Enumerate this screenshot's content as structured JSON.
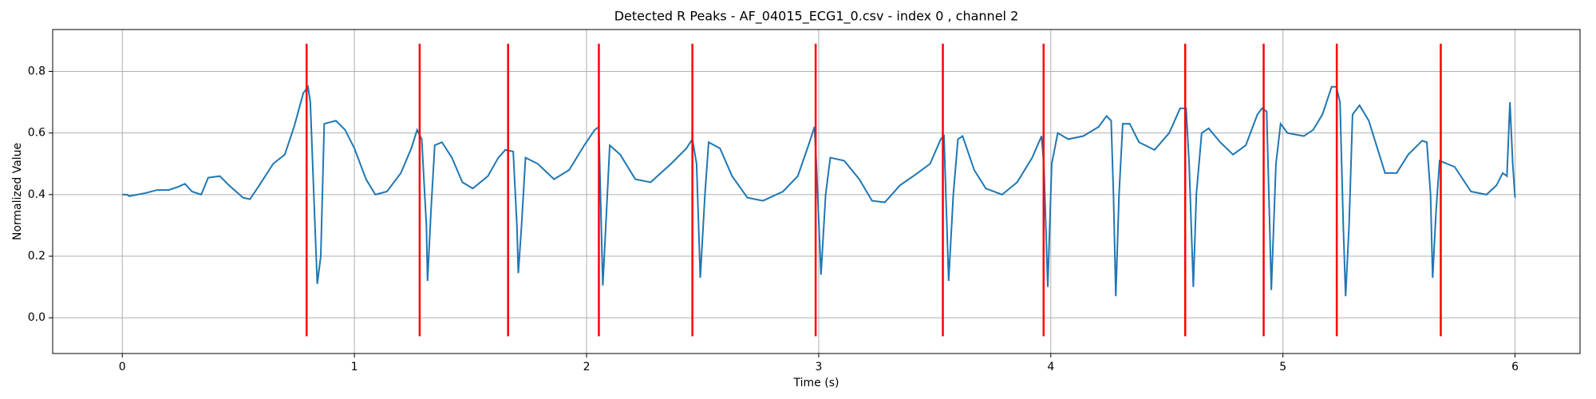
{
  "chart_data": {
    "type": "line",
    "title": "Detected R Peaks - AF_04015_ECG1_0.csv - index 0 , channel 2",
    "x_label": "Time (s)",
    "y_label": "Normalized Value",
    "xlim": [
      -0.3,
      6.28
    ],
    "ylim": [
      -0.116,
      0.936
    ],
    "xticks": [
      0,
      1,
      2,
      3,
      4,
      5,
      6
    ],
    "yticks": [
      {
        "value": 0,
        "label": "0.0"
      },
      0.2,
      0.4,
      0.6,
      0.8
    ],
    "grid": true,
    "series": [
      {
        "color": "#1f77b4",
        "x": [
          0,
          0.02,
          0.03,
          0.1,
          0.15,
          0.2,
          0.24,
          0.27,
          0.3,
          0.34,
          0.37,
          0.42,
          0.46,
          0.52,
          0.55,
          0.59,
          0.65,
          0.7,
          0.74,
          0.78,
          0.8,
          0.81,
          0.83,
          0.84,
          0.855,
          0.87,
          0.92,
          0.96,
          1.0,
          1.05,
          1.09,
          1.14,
          1.2,
          1.245,
          1.27,
          1.29,
          1.31,
          1.315,
          1.33,
          1.346,
          1.377,
          1.42,
          1.465,
          1.51,
          1.575,
          1.62,
          1.65,
          1.684,
          1.7,
          1.706,
          1.72,
          1.737,
          1.79,
          1.86,
          1.925,
          1.99,
          2.035,
          2.053,
          2.06,
          2.07,
          2.083,
          2.1,
          2.145,
          2.21,
          2.276,
          2.364,
          2.43,
          2.456,
          2.474,
          2.49,
          2.51,
          2.526,
          2.575,
          2.627,
          2.693,
          2.76,
          2.846,
          2.91,
          2.956,
          2.982,
          2.99,
          3.01,
          3.03,
          3.05,
          3.11,
          3.175,
          3.23,
          3.285,
          3.35,
          3.417,
          3.48,
          3.526,
          3.54,
          3.548,
          3.56,
          3.58,
          3.6,
          3.62,
          3.67,
          3.72,
          3.79,
          3.855,
          3.92,
          3.96,
          3.97,
          3.987,
          4.004,
          4.03,
          4.075,
          4.14,
          4.206,
          4.24,
          4.26,
          4.27,
          4.28,
          4.294,
          4.31,
          4.34,
          4.38,
          4.447,
          4.51,
          4.557,
          4.583,
          4.596,
          4.614,
          4.627,
          4.65,
          4.68,
          4.73,
          4.785,
          4.84,
          4.89,
          4.91,
          4.93,
          4.943,
          4.95,
          4.97,
          4.99,
          5.02,
          5.09,
          5.13,
          5.17,
          5.21,
          5.23,
          5.246,
          5.26,
          5.27,
          5.285,
          5.3,
          5.33,
          5.37,
          5.44,
          5.49,
          5.54,
          5.6,
          5.62,
          5.636,
          5.645,
          5.66,
          5.675,
          5.74,
          5.81,
          5.877,
          5.92,
          5.947,
          5.965,
          5.978,
          5.99,
          6.0
        ],
        "values": [
          0.4,
          0.4,
          0.395,
          0.405,
          0.415,
          0.415,
          0.425,
          0.435,
          0.41,
          0.4,
          0.455,
          0.46,
          0.43,
          0.39,
          0.385,
          0.43,
          0.5,
          0.53,
          0.62,
          0.73,
          0.75,
          0.7,
          0.3,
          0.11,
          0.2,
          0.63,
          0.64,
          0.61,
          0.55,
          0.45,
          0.4,
          0.41,
          0.47,
          0.55,
          0.61,
          0.58,
          0.3,
          0.12,
          0.35,
          0.56,
          0.57,
          0.52,
          0.44,
          0.42,
          0.46,
          0.52,
          0.545,
          0.54,
          0.3,
          0.145,
          0.3,
          0.52,
          0.5,
          0.45,
          0.48,
          0.56,
          0.61,
          0.62,
          0.4,
          0.105,
          0.3,
          0.56,
          0.53,
          0.45,
          0.44,
          0.5,
          0.55,
          0.58,
          0.5,
          0.13,
          0.4,
          0.57,
          0.55,
          0.46,
          0.39,
          0.38,
          0.41,
          0.46,
          0.56,
          0.62,
          0.5,
          0.14,
          0.4,
          0.52,
          0.51,
          0.45,
          0.38,
          0.375,
          0.43,
          0.465,
          0.5,
          0.58,
          0.59,
          0.4,
          0.12,
          0.4,
          0.58,
          0.59,
          0.48,
          0.42,
          0.4,
          0.44,
          0.52,
          0.59,
          0.5,
          0.1,
          0.5,
          0.6,
          0.58,
          0.59,
          0.62,
          0.655,
          0.64,
          0.4,
          0.07,
          0.4,
          0.63,
          0.63,
          0.57,
          0.545,
          0.6,
          0.68,
          0.68,
          0.5,
          0.1,
          0.4,
          0.6,
          0.615,
          0.57,
          0.53,
          0.56,
          0.66,
          0.68,
          0.67,
          0.3,
          0.09,
          0.5,
          0.63,
          0.6,
          0.59,
          0.61,
          0.66,
          0.75,
          0.75,
          0.7,
          0.3,
          0.07,
          0.3,
          0.66,
          0.69,
          0.64,
          0.47,
          0.47,
          0.53,
          0.575,
          0.57,
          0.4,
          0.13,
          0.35,
          0.51,
          0.49,
          0.41,
          0.4,
          0.43,
          0.47,
          0.46,
          0.7,
          0.5,
          0.39
        ]
      }
    ],
    "vlines": {
      "color": "#ff0000",
      "ymin": -0.06,
      "ymax": 0.89,
      "x": [
        0.794,
        1.281,
        1.662,
        2.053,
        2.456,
        2.987,
        3.535,
        3.969,
        4.579,
        4.917,
        5.232,
        5.68
      ]
    }
  }
}
